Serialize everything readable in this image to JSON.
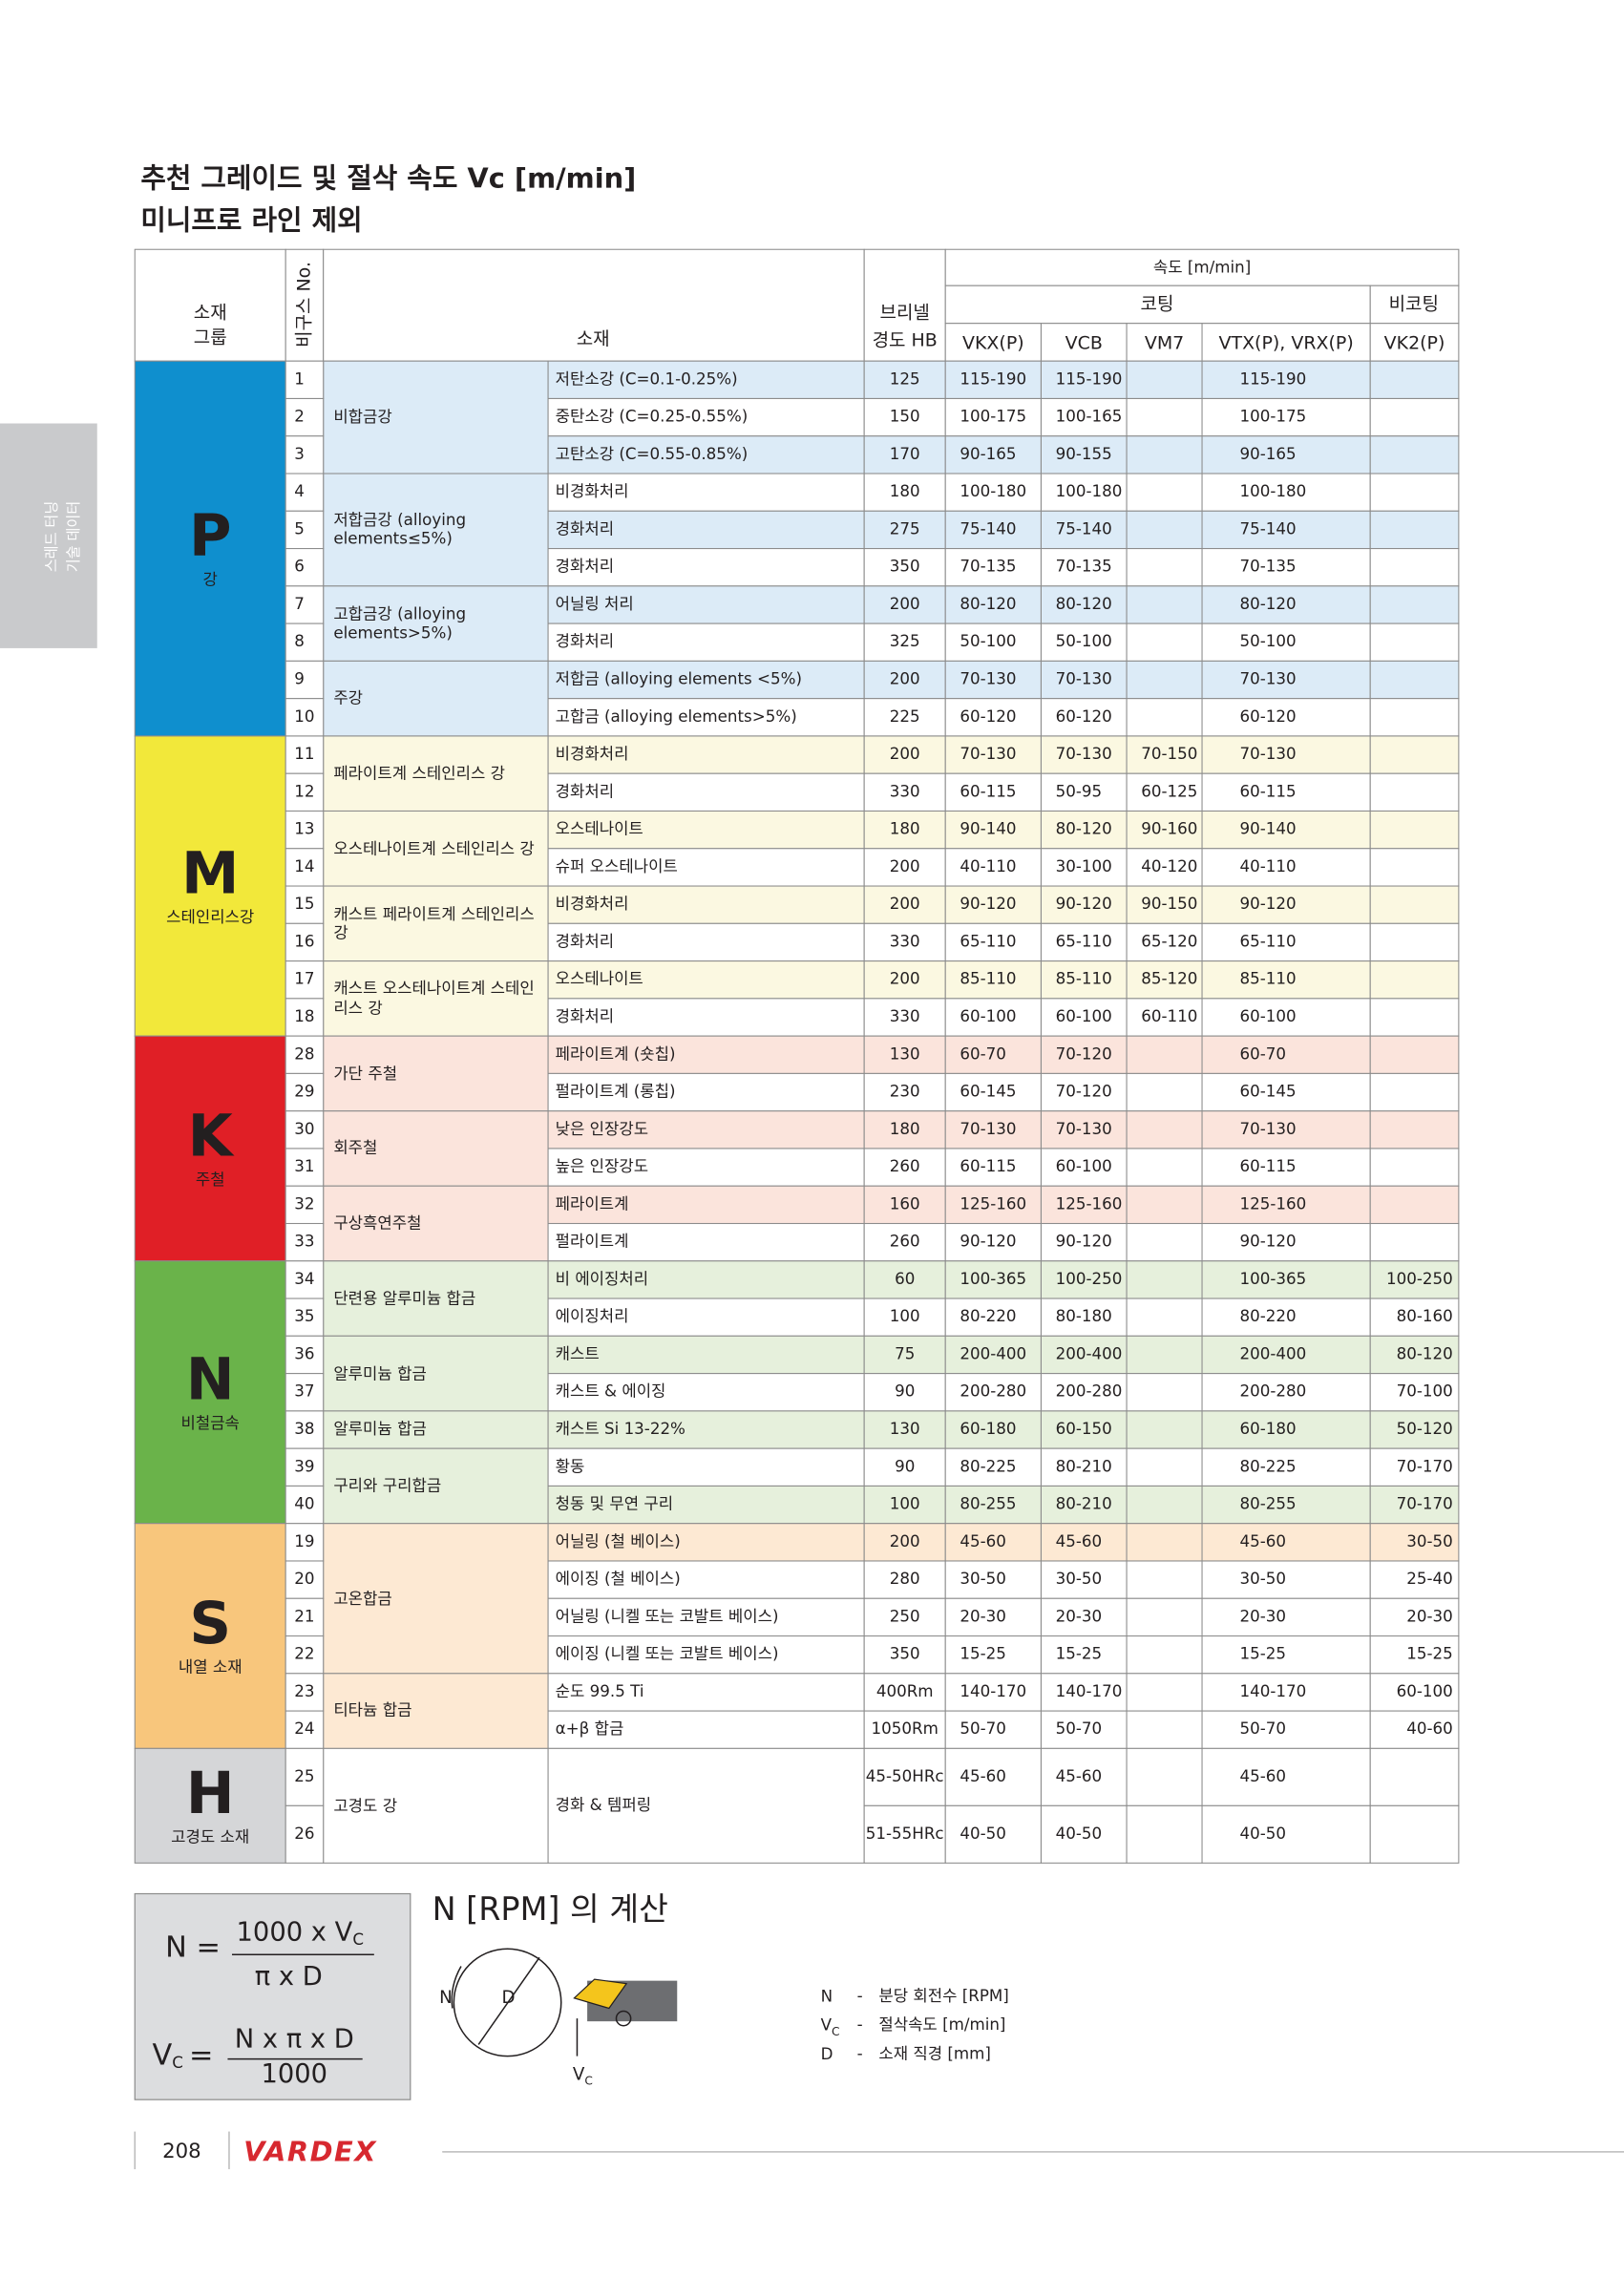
{
  "header": {
    "title": "추천 그레이드 및 절삭 속도 Vc [m/min]",
    "subtitle": "미니프로 라인 제외"
  },
  "side_tab": [
    "스레드 터닝",
    "기술 데이터"
  ],
  "table": {
    "head": {
      "group_label": [
        "소재",
        "그룹"
      ],
      "no_label": "비구스 No.",
      "material_label": "소재",
      "hb_label": [
        "브리넬",
        "경도 HB"
      ],
      "speed_label": "속도 [m/min]",
      "coated": "코팅",
      "uncoated": "비코팅",
      "columns": [
        "VKX(P)",
        "VCB",
        "VM7",
        "VTX(P), VRX(P)",
        "VK2(P)"
      ]
    },
    "groups": [
      {
        "letter": "P",
        "name": "강",
        "color": "#0f8fce",
        "light": "#dcebf7",
        "subgroups": [
          {
            "label": "비합금강",
            "rows": [
              {
                "no": 1,
                "material": "저탄소강 (C=0.1-0.25%)",
                "hb": 125,
                "speeds": [
                  "115-190",
                  "115-190",
                  null,
                  "115-190",
                  null
                ]
              },
              {
                "no": 2,
                "material": "중탄소강 (C=0.25-0.55%)",
                "hb": 150,
                "speeds": [
                  "100-175",
                  "100-165",
                  null,
                  "100-175",
                  null
                ]
              },
              {
                "no": 3,
                "material": "고탄소강 (C=0.55-0.85%)",
                "hb": 170,
                "speeds": [
                  "90-165",
                  "90-155",
                  null,
                  "90-165",
                  null
                ]
              }
            ]
          },
          {
            "label": "저합금강 (alloying elements≤5%)",
            "rows": [
              {
                "no": 4,
                "material": "비경화처리",
                "hb": 180,
                "speeds": [
                  "100-180",
                  "100-180",
                  null,
                  "100-180",
                  null
                ]
              },
              {
                "no": 5,
                "material": "경화처리",
                "hb": 275,
                "speeds": [
                  "75-140",
                  "75-140",
                  null,
                  "75-140",
                  null
                ]
              },
              {
                "no": 6,
                "material": "경화처리",
                "hb": 350,
                "speeds": [
                  "70-135",
                  "70-135",
                  null,
                  "70-135",
                  null
                ]
              }
            ]
          },
          {
            "label": "고합금강 (alloying elements>5%)",
            "rows": [
              {
                "no": 7,
                "material": "어닐링 처리",
                "hb": 200,
                "speeds": [
                  "80-120",
                  "80-120",
                  null,
                  "80-120",
                  null
                ]
              },
              {
                "no": 8,
                "material": "경화처리",
                "hb": 325,
                "speeds": [
                  "50-100",
                  "50-100",
                  null,
                  "50-100",
                  null
                ]
              }
            ]
          },
          {
            "label": "주강",
            "rows": [
              {
                "no": 9,
                "material": "저합금 (alloying elements <5%)",
                "hb": 200,
                "speeds": [
                  "70-130",
                  "70-130",
                  null,
                  "70-130",
                  null
                ]
              },
              {
                "no": 10,
                "material": "고합금 (alloying elements>5%)",
                "hb": 225,
                "speeds": [
                  "60-120",
                  "60-120",
                  null,
                  "60-120",
                  null
                ]
              }
            ]
          }
        ]
      },
      {
        "letter": "M",
        "name": "스테인리스강",
        "color": "#f2e83a",
        "light": "#fbf8e1",
        "subgroups": [
          {
            "label": "페라이트계 스테인리스 강",
            "rows": [
              {
                "no": 11,
                "material": "비경화처리",
                "hb": 200,
                "speeds": [
                  "70-130",
                  "70-130",
                  "70-150",
                  "70-130",
                  null
                ]
              },
              {
                "no": 12,
                "material": "경화처리",
                "hb": 330,
                "speeds": [
                  "60-115",
                  "50-95",
                  "60-125",
                  "60-115",
                  null
                ]
              }
            ]
          },
          {
            "label": "오스테나이트계 스테인리스 강",
            "rows": [
              {
                "no": 13,
                "material": "오스테나이트",
                "hb": 180,
                "speeds": [
                  "90-140",
                  "80-120",
                  "90-160",
                  "90-140",
                  null
                ]
              },
              {
                "no": 14,
                "material": "슈퍼 오스테나이트",
                "hb": 200,
                "speeds": [
                  "40-110",
                  "30-100",
                  "40-120",
                  "40-110",
                  null
                ]
              }
            ]
          },
          {
            "label": "캐스트 페라이트계 스테인리스 강",
            "rows": [
              {
                "no": 15,
                "material": "비경화처리",
                "hb": 200,
                "speeds": [
                  "90-120",
                  "90-120",
                  "90-150",
                  "90-120",
                  null
                ]
              },
              {
                "no": 16,
                "material": "경화처리",
                "hb": 330,
                "speeds": [
                  "65-110",
                  "65-110",
                  "65-120",
                  "65-110",
                  null
                ]
              }
            ]
          },
          {
            "label": "캐스트 오스테나이트계 스테인리스 강",
            "rows": [
              {
                "no": 17,
                "material": "오스테나이트",
                "hb": 200,
                "speeds": [
                  "85-110",
                  "85-110",
                  "85-120",
                  "85-110",
                  null
                ]
              },
              {
                "no": 18,
                "material": "경화처리",
                "hb": 330,
                "speeds": [
                  "60-100",
                  "60-100",
                  "60-110",
                  "60-100",
                  null
                ]
              }
            ]
          }
        ]
      },
      {
        "letter": "K",
        "name": "주철",
        "color": "#e01f26",
        "light": "#fbe4dc",
        "subgroups": [
          {
            "label": "가단 주철",
            "rows": [
              {
                "no": 28,
                "material": "페라이트계 (숏칩)",
                "hb": 130,
                "speeds": [
                  "60-70",
                  "70-120",
                  null,
                  "60-70",
                  null
                ]
              },
              {
                "no": 29,
                "material": "펄라이트계 (롱칩)",
                "hb": 230,
                "speeds": [
                  "60-145",
                  "70-120",
                  null,
                  "60-145",
                  null
                ]
              }
            ]
          },
          {
            "label": "회주철",
            "rows": [
              {
                "no": 30,
                "material": "낮은 인장강도",
                "hb": 180,
                "speeds": [
                  "70-130",
                  "70-130",
                  null,
                  "70-130",
                  null
                ]
              },
              {
                "no": 31,
                "material": "높은 인장강도",
                "hb": 260,
                "speeds": [
                  "60-115",
                  "60-100",
                  null,
                  "60-115",
                  null
                ]
              }
            ]
          },
          {
            "label": "구상흑연주철",
            "rows": [
              {
                "no": 32,
                "material": "페라이트계",
                "hb": 160,
                "speeds": [
                  "125-160",
                  "125-160",
                  null,
                  "125-160",
                  null
                ]
              },
              {
                "no": 33,
                "material": "펄라이트계",
                "hb": 260,
                "speeds": [
                  "90-120",
                  "90-120",
                  null,
                  "90-120",
                  null
                ]
              }
            ]
          }
        ]
      },
      {
        "letter": "N",
        "name": "비철금속",
        "color": "#6ab34a",
        "light": "#e6f0dc",
        "subgroups": [
          {
            "label": "단련용 알루미늄 합금",
            "rows": [
              {
                "no": 34,
                "material": "비 에이징처리",
                "hb": 60,
                "speeds": [
                  "100-365",
                  "100-250",
                  null,
                  "100-365",
                  "100-250"
                ]
              },
              {
                "no": 35,
                "material": "에이징처리",
                "hb": 100,
                "speeds": [
                  "80-220",
                  "80-180",
                  null,
                  "80-220",
                  "80-160"
                ]
              }
            ]
          },
          {
            "label": "알루미늄 합금",
            "rows": [
              {
                "no": 36,
                "material": "캐스트",
                "hb": 75,
                "speeds": [
                  "200-400",
                  "200-400",
                  null,
                  "200-400",
                  "80-120"
                ]
              },
              {
                "no": 37,
                "material": "캐스트 & 에이징",
                "hb": 90,
                "speeds": [
                  "200-280",
                  "200-280",
                  null,
                  "200-280",
                  "70-100"
                ]
              }
            ]
          },
          {
            "label": "알루미늄 합금",
            "rows": [
              {
                "no": 38,
                "material": "캐스트 Si 13-22%",
                "hb": 130,
                "speeds": [
                  "60-180",
                  "60-150",
                  null,
                  "60-180",
                  "50-120"
                ]
              }
            ]
          },
          {
            "label": "구리와 구리합금",
            "rows": [
              {
                "no": 39,
                "material": "황동",
                "hb": 90,
                "speeds": [
                  "80-225",
                  "80-210",
                  null,
                  "80-225",
                  "70-170"
                ]
              },
              {
                "no": 40,
                "material": "청동 및 무연 구리",
                "hb": 100,
                "speeds": [
                  "80-255",
                  "80-210",
                  null,
                  "80-255",
                  "70-170"
                ]
              }
            ]
          }
        ]
      },
      {
        "letter": "S",
        "name": "내열 소재",
        "color": "#f8c67c",
        "light": "#fde9d3",
        "subgroups": [
          {
            "label": "고온합금",
            "rows": [
              {
                "no": 19,
                "material": "어닐링 (철 베이스)",
                "hb": 200,
                "speeds": [
                  "45-60",
                  "45-60",
                  null,
                  "45-60",
                  "30-50"
                ]
              },
              {
                "no": 20,
                "material": "에이징 (철 베이스)",
                "hb": 280,
                "speeds": [
                  "30-50",
                  "30-50",
                  null,
                  "30-50",
                  "25-40"
                ]
              },
              {
                "no": 21,
                "material": "어닐링 (니켈 또는 코발트 베이스)",
                "hb": 250,
                "speeds": [
                  "20-30",
                  "20-30",
                  null,
                  "20-30",
                  "20-30"
                ]
              },
              {
                "no": 22,
                "material": "에이징 (니켈 또는 코발트 베이스)",
                "hb": 350,
                "speeds": [
                  "15-25",
                  "15-25",
                  null,
                  "15-25",
                  "15-25"
                ]
              }
            ]
          },
          {
            "label": "티타늄 합금",
            "rows": [
              {
                "no": 23,
                "material": "순도 99.5 Ti",
                "hb": "400Rm",
                "speeds": [
                  "140-170",
                  "140-170",
                  null,
                  "140-170",
                  "60-100"
                ]
              },
              {
                "no": 24,
                "material": "α+β 합금",
                "hb": "1050Rm",
                "speeds": [
                  "50-70",
                  "50-70",
                  null,
                  "50-70",
                  "40-60"
                ]
              }
            ]
          }
        ]
      },
      {
        "letter": "H",
        "name": "고경도 소재",
        "color": "#d5d6d8",
        "light": "#ffffff",
        "subgroups": [
          {
            "label": "고경도 강",
            "material": "경화 & 템퍼링",
            "rows": [
              {
                "no": 25,
                "hb": "45-50HRc",
                "speeds": [
                  "45-60",
                  "45-60",
                  null,
                  "45-60",
                  null
                ]
              },
              {
                "no": 26,
                "hb": "51-55HRc",
                "speeds": [
                  "40-50",
                  "40-50",
                  null,
                  "40-50",
                  null
                ]
              }
            ]
          }
        ]
      }
    ]
  },
  "calc": {
    "title": "N [RPM] 의 계산",
    "rpm": {
      "lhs": "N =",
      "numerator": "1000 x V",
      "numerator_sub": "C",
      "denominator": "π x D"
    },
    "vc": {
      "lhs": "V",
      "lhs_sub": "C",
      "eq": "=",
      "numerator": "N x π x D",
      "denominator": "1000"
    },
    "diagram": {
      "n": "N",
      "d": "D",
      "vc": "V",
      "vc_sub": "C"
    },
    "legend": [
      {
        "symbol": "N",
        "dash": "-",
        "text": "분당 회전수 [RPM]"
      },
      {
        "symbol": "V",
        "sub": "C",
        "dash": "-",
        "text": "절삭속도 [m/min]"
      },
      {
        "symbol": "D",
        "dash": "-",
        "text": "소재 직경 [mm]"
      }
    ]
  },
  "footer": {
    "page": "208",
    "brand": "VARDEX"
  }
}
